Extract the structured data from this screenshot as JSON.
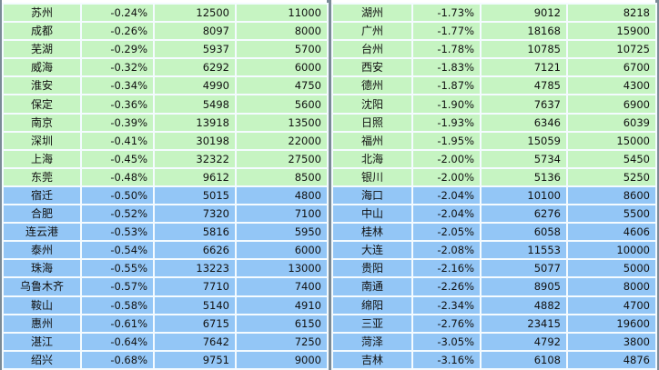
{
  "colors": {
    "green_row": "#c6f4c2",
    "blue_row": "#93c6f6"
  },
  "tables": [
    {
      "rows": [
        [
          "苏州",
          "-0.24%",
          "12500",
          "11000"
        ],
        [
          "成都",
          "-0.26%",
          "8097",
          "8000"
        ],
        [
          "芜湖",
          "-0.29%",
          "5937",
          "5700"
        ],
        [
          "威海",
          "-0.32%",
          "6292",
          "6000"
        ],
        [
          "淮安",
          "-0.34%",
          "4990",
          "4750"
        ],
        [
          "保定",
          "-0.36%",
          "5498",
          "5600"
        ],
        [
          "南京",
          "-0.39%",
          "13918",
          "13500"
        ],
        [
          "深圳",
          "-0.41%",
          "30198",
          "22000"
        ],
        [
          "上海",
          "-0.45%",
          "32322",
          "27500"
        ],
        [
          "东莞",
          "-0.48%",
          "9612",
          "8500"
        ],
        [
          "宿迁",
          "-0.50%",
          "5015",
          "4800"
        ],
        [
          "合肥",
          "-0.52%",
          "7320",
          "7100"
        ],
        [
          "连云港",
          "-0.53%",
          "5816",
          "5950"
        ],
        [
          "泰州",
          "-0.54%",
          "6626",
          "6000"
        ],
        [
          "珠海",
          "-0.55%",
          "13223",
          "13000"
        ],
        [
          "乌鲁木齐",
          "-0.57%",
          "7710",
          "7400"
        ],
        [
          "鞍山",
          "-0.58%",
          "5140",
          "4910"
        ],
        [
          "惠州",
          "-0.61%",
          "6715",
          "6150"
        ],
        [
          "湛江",
          "-0.64%",
          "7642",
          "7250"
        ],
        [
          "绍兴",
          "-0.68%",
          "9751",
          "9000"
        ]
      ]
    },
    {
      "rows": [
        [
          "湖州",
          "-1.73%",
          "9012",
          "8218"
        ],
        [
          "广州",
          "-1.77%",
          "18168",
          "15900"
        ],
        [
          "台州",
          "-1.78%",
          "10785",
          "10725"
        ],
        [
          "西安",
          "-1.83%",
          "7121",
          "6700"
        ],
        [
          "德州",
          "-1.87%",
          "4785",
          "4300"
        ],
        [
          "沈阳",
          "-1.90%",
          "7637",
          "6900"
        ],
        [
          "日照",
          "-1.93%",
          "6346",
          "6039"
        ],
        [
          "福州",
          "-1.95%",
          "15059",
          "15000"
        ],
        [
          "北海",
          "-2.00%",
          "5734",
          "5450"
        ],
        [
          "银川",
          "-2.00%",
          "5136",
          "5250"
        ],
        [
          "海口",
          "-2.04%",
          "10100",
          "8600"
        ],
        [
          "中山",
          "-2.04%",
          "6276",
          "5500"
        ],
        [
          "桂林",
          "-2.05%",
          "6058",
          "4606"
        ],
        [
          "大连",
          "-2.08%",
          "11553",
          "10000"
        ],
        [
          "贵阳",
          "-2.16%",
          "5077",
          "5000"
        ],
        [
          "南通",
          "-2.26%",
          "8905",
          "8000"
        ],
        [
          "绵阳",
          "-2.34%",
          "4882",
          "4700"
        ],
        [
          "三亚",
          "-2.76%",
          "23415",
          "19600"
        ],
        [
          "菏泽",
          "-3.05%",
          "4792",
          "3800"
        ],
        [
          "吉林",
          "-3.16%",
          "6108",
          "4876"
        ]
      ]
    }
  ]
}
